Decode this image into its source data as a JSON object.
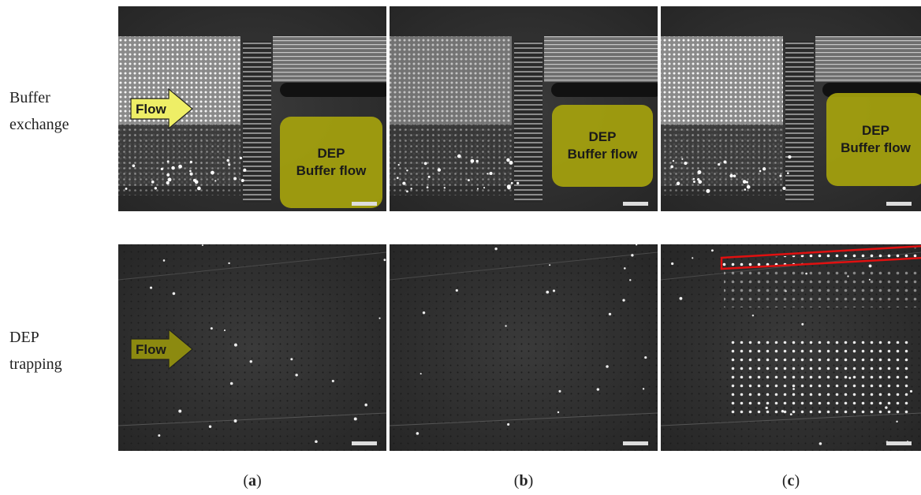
{
  "row_labels": [
    [
      "Buffer",
      "exchange"
    ],
    [
      "DEP",
      "trapping"
    ]
  ],
  "flow_label": "Flow",
  "dep_box": [
    "DEP",
    "Buffer flow"
  ],
  "captions": [
    [
      "(",
      "a",
      ")"
    ],
    [
      "(",
      "b",
      ")"
    ],
    [
      "(",
      "c",
      ")"
    ]
  ]
}
